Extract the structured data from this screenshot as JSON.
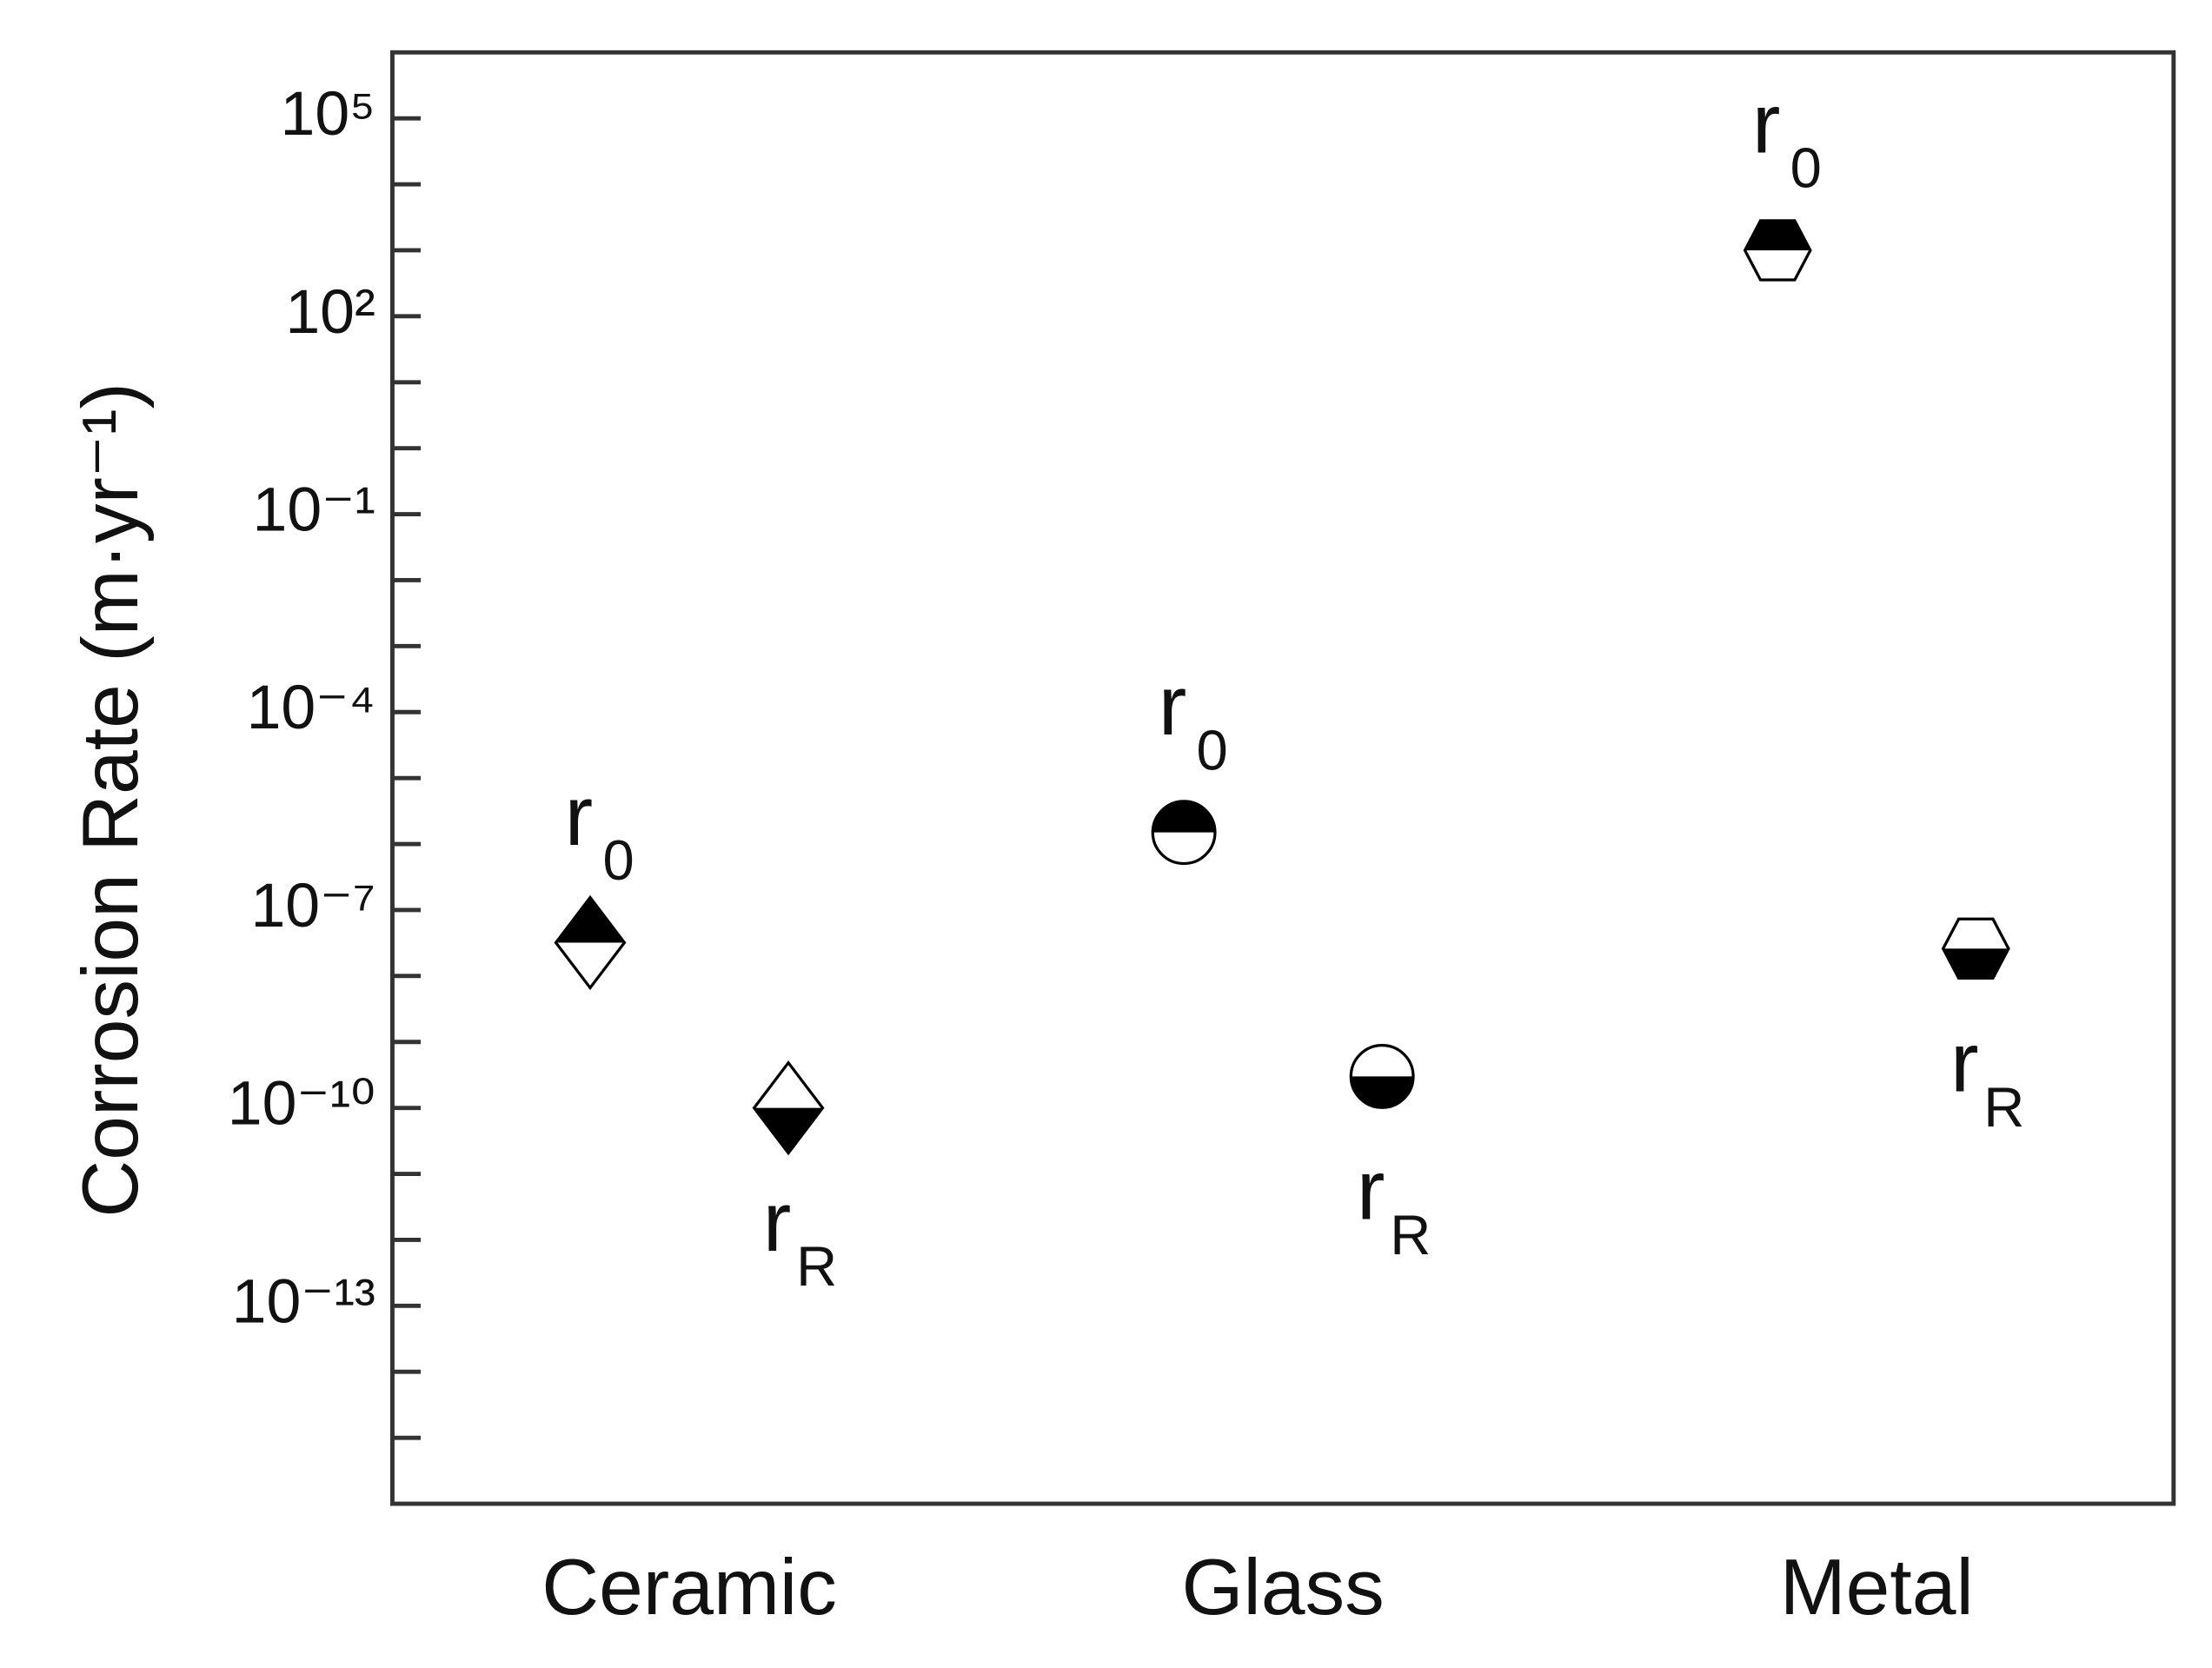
{
  "chart_data": {
    "type": "scatter",
    "y_label": "Corrosion Rate (m·yr⁻¹)",
    "y_scale": "log",
    "categories": [
      "Ceramic",
      "Glass",
      "Metal"
    ],
    "markers": [
      "diamond",
      "circle",
      "hexagon"
    ],
    "series": [
      {
        "label": [
          "r",
          "0"
        ],
        "filled_half": "top",
        "color": "#000000",
        "values": [
          3.2e-08,
          1.5e-06,
          1000
        ]
      },
      {
        "label": [
          "r",
          "R"
        ],
        "filled_half": "bottom",
        "color": "#000000",
        "values": [
          1e-10,
          3e-10,
          2.6e-08
        ]
      }
    ],
    "ylim": [
      1e-16,
      1000000.0
    ],
    "yticks": [
      {
        "value": 100000.0,
        "label": "10⁵"
      },
      {
        "value": 100.0,
        "label": "10²"
      },
      {
        "value": 0.1,
        "label": "10⁻¹"
      },
      {
        "value": 0.0001,
        "label": "10⁻⁴"
      },
      {
        "value": 1e-07,
        "label": "10⁻⁷"
      },
      {
        "value": 1e-10,
        "label": "10⁻¹⁰"
      },
      {
        "value": 1e-13,
        "label": "10⁻¹³"
      }
    ],
    "yminor_ticks": [
      10000.0,
      1000.0,
      10.0,
      1,
      0.01,
      0.001,
      1e-05,
      1e-06,
      1e-08,
      1e-09,
      1e-11,
      1e-12,
      1e-14,
      1e-15
    ]
  }
}
